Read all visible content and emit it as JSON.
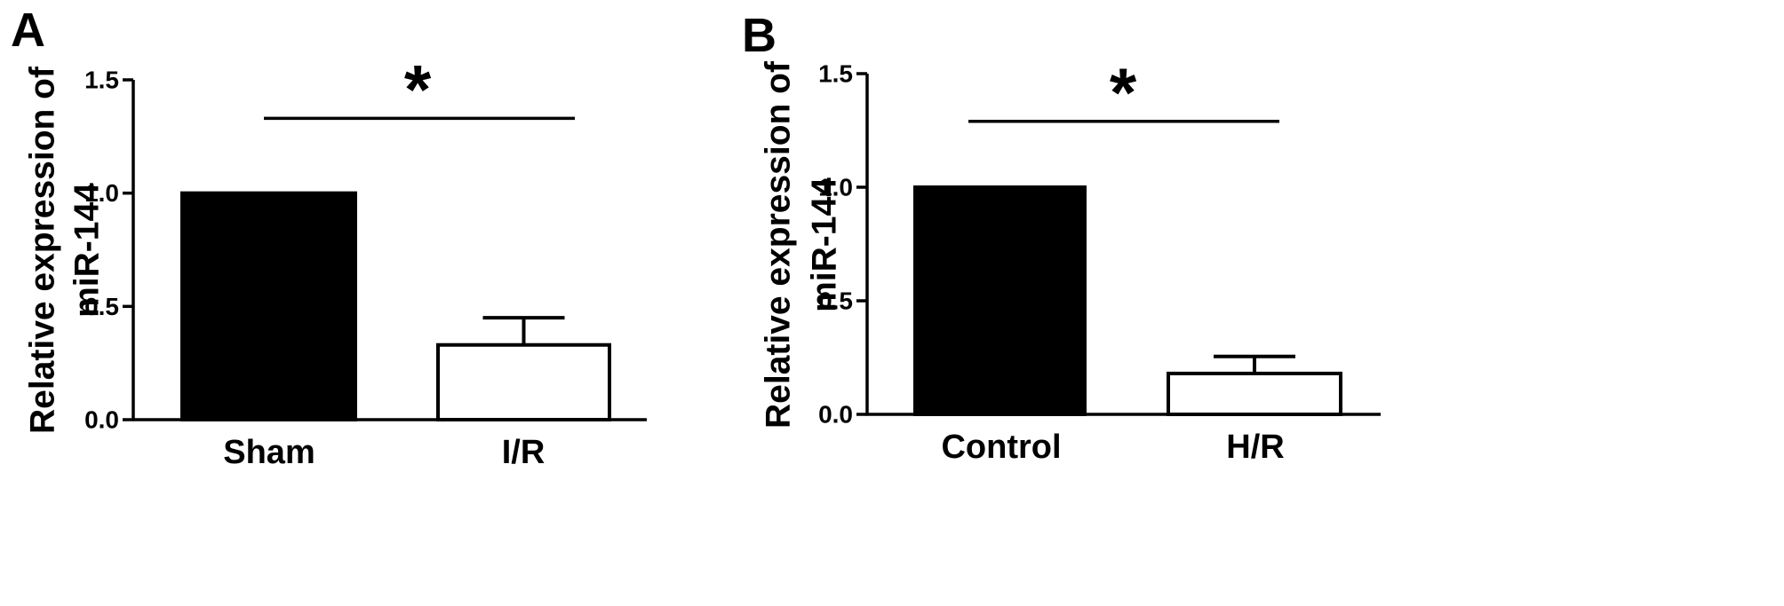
{
  "chart_data": [
    {
      "panel": "A",
      "type": "bar",
      "categories": [
        "Sham",
        "I/R"
      ],
      "values": [
        1.0,
        0.33
      ],
      "errors": [
        0,
        0.12
      ],
      "fills": [
        "#000000",
        "#ffffff"
      ],
      "ylabel_lines": [
        "Relative expression of",
        "miR-144"
      ],
      "ylim": [
        0,
        1.5
      ],
      "yticks": [
        0.0,
        0.5,
        1.0,
        1.5
      ],
      "ytick_labels": [
        "0.0",
        "0.5",
        "1.0",
        "1.5"
      ],
      "significance": {
        "label": "*",
        "y": 1.33
      },
      "grid": false
    },
    {
      "panel": "B",
      "type": "bar",
      "categories": [
        "Control",
        "H/R"
      ],
      "values": [
        1.0,
        0.18
      ],
      "errors": [
        0,
        0.075
      ],
      "fills": [
        "#000000",
        "#ffffff"
      ],
      "ylabel_lines": [
        "Relative expression of",
        "miR-144"
      ],
      "ylim": [
        0,
        1.5
      ],
      "yticks": [
        0.0,
        0.5,
        1.0,
        1.5
      ],
      "ytick_labels": [
        "0.0",
        "0.5",
        "1.0",
        "1.5"
      ],
      "significance": {
        "label": "*",
        "y": 1.29
      },
      "grid": false
    }
  ]
}
